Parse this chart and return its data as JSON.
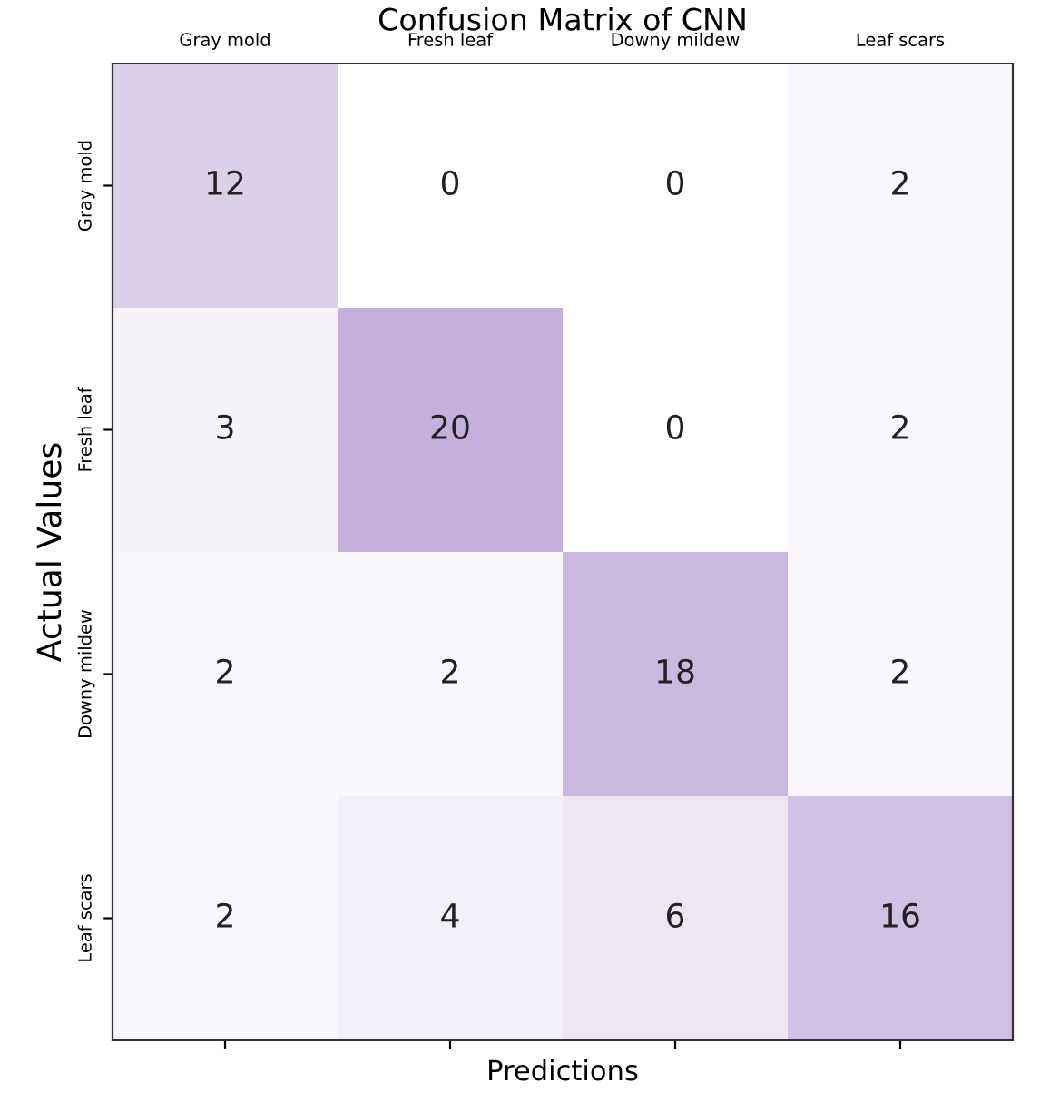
{
  "chart_data": {
    "type": "heatmap",
    "title": "Confusion Matrix of CNN",
    "xlabel": "Predictions",
    "ylabel": "Actual Values",
    "categories": [
      "Gray mold",
      "Fresh leaf",
      "Downy mildew",
      "Leaf scars"
    ],
    "y_categories": [
      "Gray mold",
      "Fresh leaf",
      "Downy mildew",
      "Leaf scars"
    ],
    "cells": [
      [
        12,
        0,
        0,
        2
      ],
      [
        3,
        20,
        0,
        2
      ],
      [
        2,
        2,
        18,
        2
      ],
      [
        2,
        4,
        6,
        16
      ]
    ],
    "color": "#c4b0da",
    "data_labels": true
  }
}
